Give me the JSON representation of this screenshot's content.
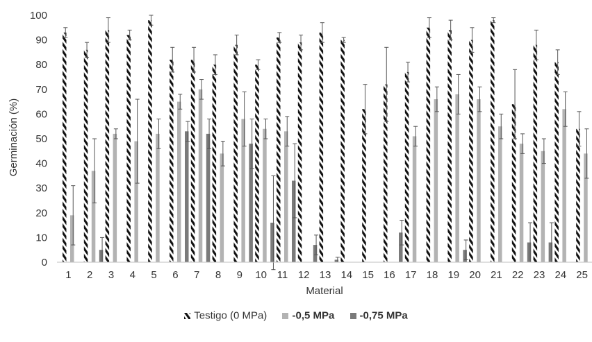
{
  "chart_data": {
    "type": "bar",
    "title": "",
    "xlabel": "Material",
    "ylabel": "Germinación (%)",
    "ylim": [
      0,
      100
    ],
    "yticks": [
      0,
      10,
      20,
      30,
      40,
      50,
      60,
      70,
      80,
      90,
      100
    ],
    "categories": [
      "1",
      "2",
      "3",
      "4",
      "5",
      "6",
      "7",
      "8",
      "9",
      "10",
      "11",
      "12",
      "13",
      "14",
      "15",
      "16",
      "17",
      "18",
      "19",
      "20",
      "21",
      "22",
      "23",
      "24",
      "25"
    ],
    "grid": false,
    "legend_position": "bottom",
    "series": [
      {
        "name": "Testigo (0 MPa)",
        "pattern": "diagonal-hatch",
        "color": "#111111",
        "values": [
          93,
          86,
          94,
          92,
          98,
          82,
          82,
          80,
          88,
          80,
          91,
          89,
          93,
          90,
          62,
          72,
          77,
          95,
          94,
          90,
          98,
          64,
          88,
          81,
          54
        ],
        "errors": [
          2,
          3,
          5,
          2,
          2,
          5,
          5,
          4,
          4,
          2,
          2,
          3,
          4,
          1,
          10,
          15,
          4,
          4,
          4,
          5,
          1,
          14,
          6,
          5,
          7
        ]
      },
      {
        "name": "-0,5 MPa",
        "color": "#b3b3b3",
        "values": [
          19,
          37,
          52,
          49,
          52,
          65,
          70,
          44,
          58,
          54,
          53,
          0,
          0,
          0,
          0,
          0,
          51,
          66,
          68,
          66,
          55,
          48,
          45,
          62,
          44
        ],
        "errors": [
          12,
          13,
          2,
          17,
          6,
          3,
          4,
          5,
          11,
          4,
          6,
          0,
          0,
          0,
          0,
          0,
          4,
          5,
          8,
          5,
          5,
          4,
          5,
          7,
          10
        ]
      },
      {
        "name": "-0,75 MPa",
        "color": "#7a7a7a",
        "values": [
          0,
          5,
          0,
          0,
          0,
          53,
          52,
          0,
          48,
          16,
          33,
          7,
          1,
          0,
          0,
          12,
          0,
          0,
          5,
          0,
          0,
          8,
          8,
          0,
          0
        ],
        "errors": [
          0,
          5,
          0,
          0,
          0,
          4,
          6,
          0,
          10,
          19,
          15,
          4,
          1,
          0,
          0,
          5,
          0,
          0,
          4,
          0,
          0,
          8,
          8,
          0,
          0
        ]
      }
    ]
  }
}
